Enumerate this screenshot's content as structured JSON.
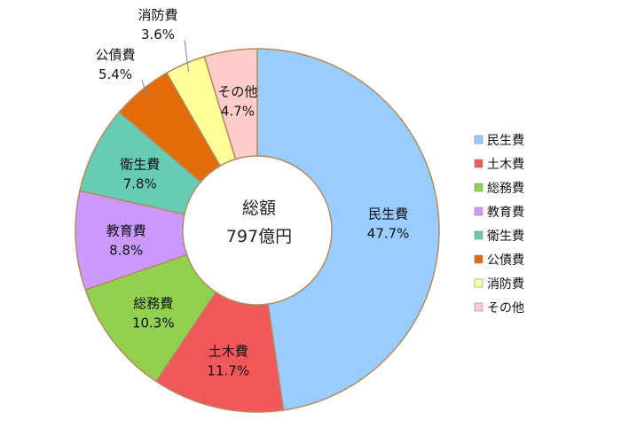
{
  "chart_data": {
    "type": "pie",
    "center_label": {
      "line1": "総額",
      "line2": "797億円"
    },
    "slices": [
      {
        "label": "民生費",
        "value": 47.7,
        "value_text": "47.7%",
        "color": "#99CCFF"
      },
      {
        "label": "土木費",
        "value": 11.7,
        "value_text": "11.7%",
        "color": "#F2575A"
      },
      {
        "label": "総務費",
        "value": 10.3,
        "value_text": "10.3%",
        "color": "#92D050"
      },
      {
        "label": "教育費",
        "value": 8.8,
        "value_text": "8.8%",
        "color": "#CC99FF"
      },
      {
        "label": "衛生費",
        "value": 7.8,
        "value_text": "7.8%",
        "color": "#66CCB4"
      },
      {
        "label": "公債費",
        "value": 5.4,
        "value_text": "5.4%",
        "color": "#E36C09"
      },
      {
        "label": "消防費",
        "value": 3.6,
        "value_text": "3.6%",
        "color": "#FFFF99"
      },
      {
        "label": "その他",
        "value": 4.7,
        "value_text": "4.7%",
        "color": "#FFCCCC"
      }
    ],
    "legend_placement": "right",
    "border_color": "#B38B5C"
  }
}
